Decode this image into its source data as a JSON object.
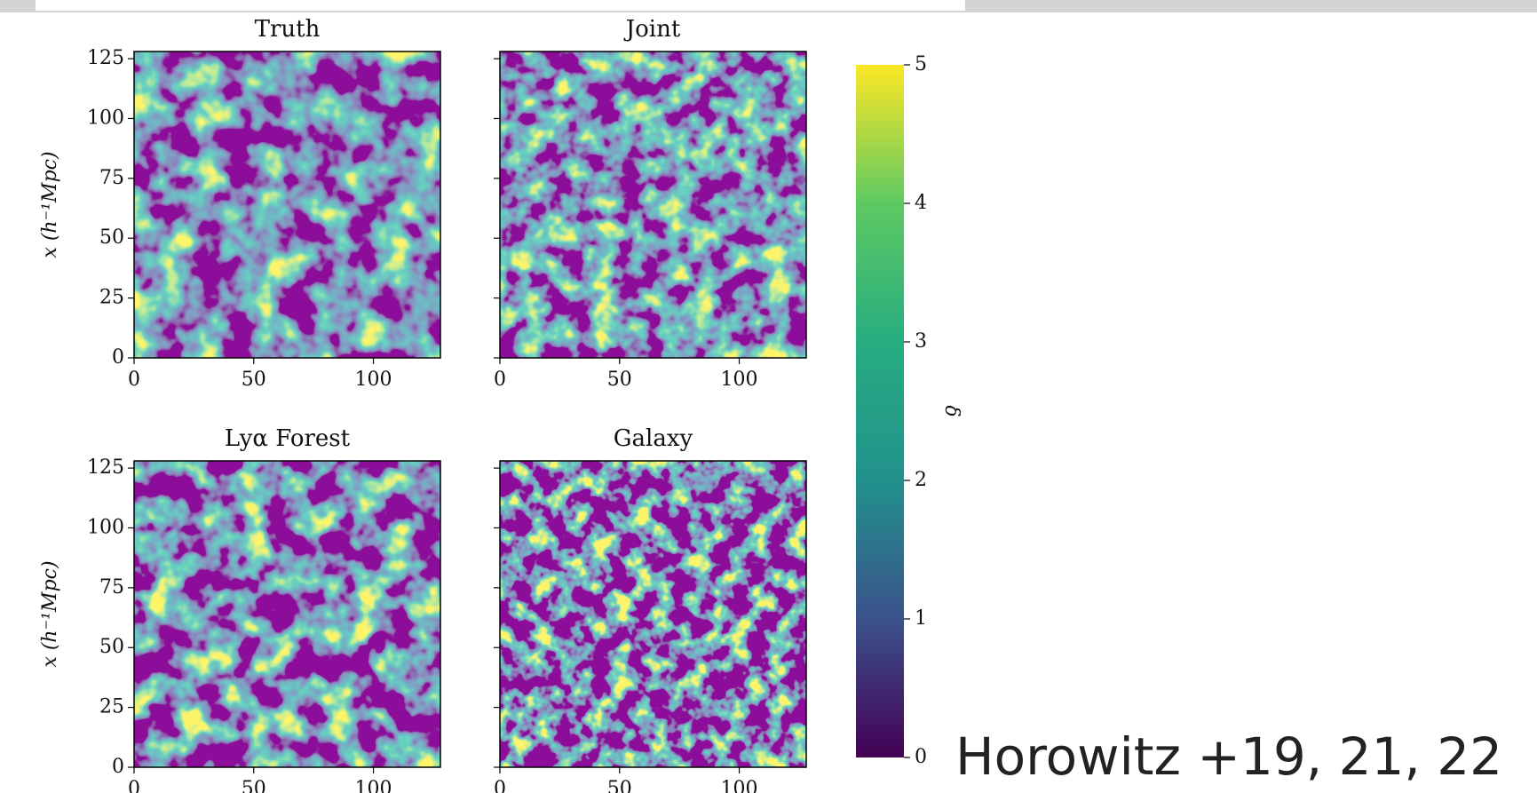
{
  "chart_data": [
    {
      "type": "image",
      "title": "Truth",
      "xlim": [
        0,
        128
      ],
      "ylim": [
        0,
        128
      ],
      "xticks": [
        0,
        50,
        100
      ],
      "yticks": [
        0,
        25,
        50,
        75,
        100,
        125
      ],
      "ylabel": "x (h⁻¹Mpc)",
      "ytick_labels": true
    },
    {
      "type": "image",
      "title": "Joint",
      "xlim": [
        0,
        128
      ],
      "ylim": [
        0,
        128
      ],
      "xticks": [
        0,
        50,
        100
      ],
      "yticks": [
        0,
        25,
        50,
        75,
        100,
        125
      ],
      "ytick_labels": false
    },
    {
      "type": "image",
      "title": "Lyα Forest",
      "xlim": [
        0,
        128
      ],
      "ylim": [
        0,
        128
      ],
      "xticks": [
        0,
        50,
        100
      ],
      "yticks": [
        0,
        25,
        50,
        75,
        100,
        125
      ],
      "ylabel": "x (h⁻¹Mpc)",
      "ytick_labels": true
    },
    {
      "type": "image",
      "title": "Galaxy",
      "xlim": [
        0,
        128
      ],
      "ylim": [
        0,
        128
      ],
      "xticks": [
        0,
        50,
        100
      ],
      "yticks": [
        0,
        25,
        50,
        75,
        100,
        125
      ],
      "ytick_labels": false
    }
  ],
  "colorbar": {
    "label": "δ",
    "ylim": [
      0,
      5
    ],
    "yticks": [
      0,
      1,
      2,
      3,
      4,
      5
    ],
    "colormap": "viridis"
  },
  "caption": "Horowitz +19, 21, 22"
}
